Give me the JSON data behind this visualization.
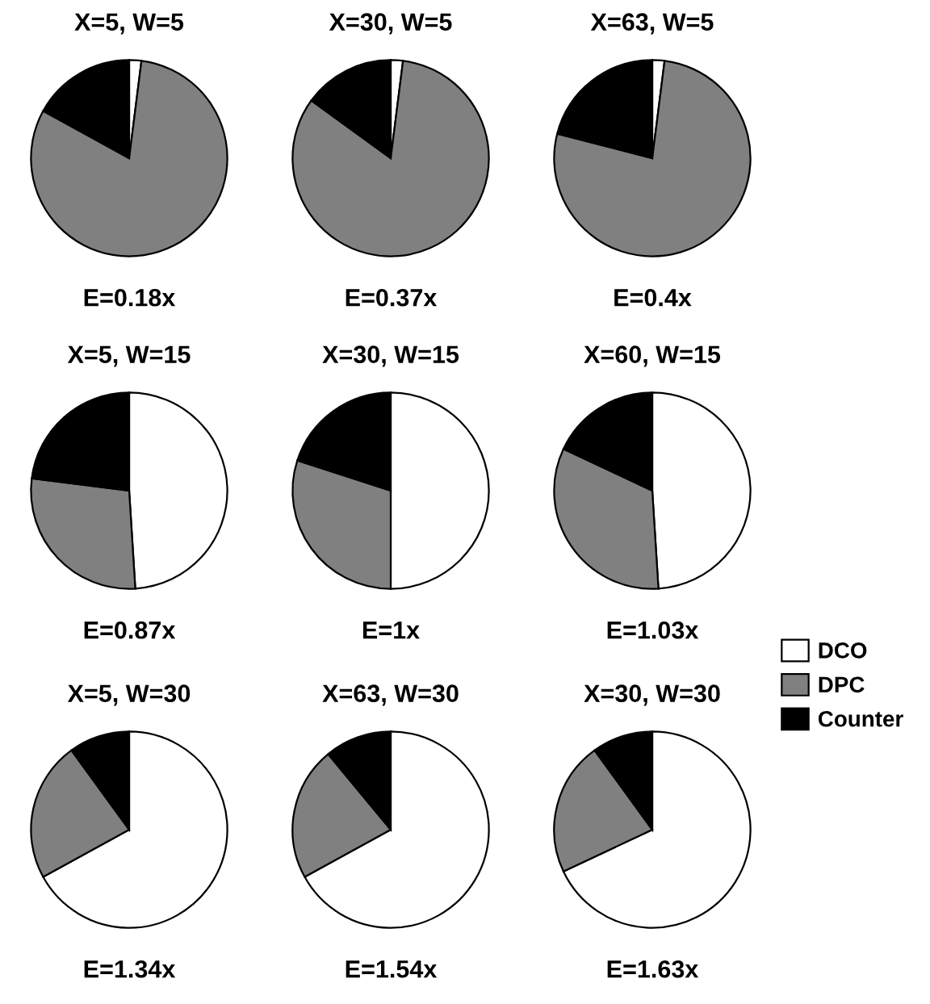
{
  "chart_data": [
    {
      "type": "pie",
      "title": "X=5, W=5",
      "categories": [
        null,
        null,
        null
      ],
      "values": [
        2,
        81,
        17
      ],
      "colors": [
        "#ffffff",
        "#808080",
        "#000000"
      ],
      "annotations": [
        "E=0.18x"
      ],
      "legend": false
    },
    {
      "type": "pie",
      "title": "X=30, W=5",
      "categories": [
        null,
        null,
        null
      ],
      "values": [
        2,
        83,
        15
      ],
      "colors": [
        "#ffffff",
        "#808080",
        "#000000"
      ],
      "annotations": [
        "E=0.37x"
      ],
      "legend": false
    },
    {
      "type": "pie",
      "title": "X=63, W=5",
      "categories": [
        null,
        null,
        null
      ],
      "values": [
        2,
        77,
        21
      ],
      "colors": [
        "#ffffff",
        "#808080",
        "#000000"
      ],
      "annotations": [
        "E=0.4x"
      ],
      "legend": false
    },
    {
      "type": "pie",
      "title": "X=5, W=15",
      "categories": [
        null,
        null,
        null
      ],
      "values": [
        49,
        28,
        23
      ],
      "colors": [
        "#ffffff",
        "#808080",
        "#000000"
      ],
      "annotations": [
        "E=0.87x"
      ],
      "legend": false
    },
    {
      "type": "pie",
      "title": "X=30, W=15",
      "categories": [
        null,
        null,
        null
      ],
      "values": [
        50,
        30,
        20
      ],
      "colors": [
        "#ffffff",
        "#808080",
        "#000000"
      ],
      "annotations": [
        "E=1x"
      ],
      "legend": false
    },
    {
      "type": "pie",
      "title": "X=60, W=15",
      "categories": [
        "DCO",
        "DPC",
        "Counter"
      ],
      "values": [
        49,
        33,
        18
      ],
      "colors": [
        "#ffffff",
        "#808080",
        "#000000"
      ],
      "annotations": [
        "E=1.03x"
      ],
      "legend": "bottom right"
    },
    {
      "type": "pie",
      "title": "X=5, W=30",
      "categories": [
        null,
        null,
        null
      ],
      "values": [
        67,
        23,
        10
      ],
      "colors": [
        "#ffffff",
        "#808080",
        "#000000"
      ],
      "annotations": [
        "E=1.34x"
      ],
      "legend": false
    },
    {
      "type": "pie",
      "title": "X=63, W=30",
      "categories": [
        null,
        null,
        null
      ],
      "values": [
        67,
        22,
        11
      ],
      "colors": [
        "#ffffff",
        "#808080",
        "#000000"
      ],
      "annotations": [
        "E=1.54x"
      ],
      "legend": false
    },
    {
      "type": "pie",
      "title": "X=30, W=30",
      "categories": [
        null,
        null,
        null
      ],
      "values": [
        68,
        22,
        10
      ],
      "colors": [
        "#ffffff",
        "#808080",
        "#000000"
      ],
      "annotations": [
        "E=1.63x"
      ],
      "legend": false
    }
  ]
}
